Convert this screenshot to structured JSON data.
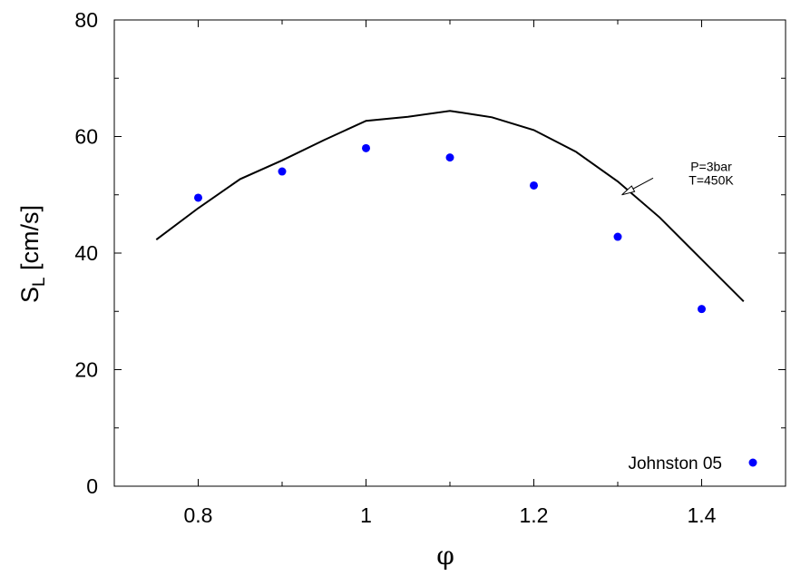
{
  "chart_data": {
    "type": "scatter",
    "title": "",
    "xlabel": "φ",
    "ylabel_main": "S",
    "ylabel_sub": "L",
    "ylabel_unit": " [cm/s]",
    "xlim": [
      0.7,
      1.5
    ],
    "ylim": [
      0,
      80
    ],
    "x_ticks": [
      0.8,
      1,
      1.2,
      1.4
    ],
    "x_tick_labels": [
      "0.8",
      "1",
      "1.2",
      "1.4"
    ],
    "y_ticks": [
      0,
      20,
      40,
      60,
      80
    ],
    "y_tick_labels": [
      "0",
      "20",
      "40",
      "60",
      "80"
    ],
    "grid": false,
    "legend_position": "bottom-right",
    "series": [
      {
        "name": "Johnston 05",
        "kind": "points",
        "color": "#0000ff",
        "x": [
          0.8,
          0.9,
          1.0,
          1.1,
          1.2,
          1.3,
          1.4
        ],
        "y": [
          49.5,
          54.0,
          58.0,
          56.4,
          51.6,
          42.8,
          30.4
        ]
      },
      {
        "kind": "line",
        "color": "#000000",
        "x": [
          0.75,
          0.8,
          0.85,
          0.9,
          0.95,
          1.0,
          1.05,
          1.1,
          1.15,
          1.2,
          1.25,
          1.3,
          1.35,
          1.4,
          1.45
        ],
        "y": [
          42.3,
          47.7,
          52.7,
          55.9,
          59.4,
          62.7,
          63.4,
          64.4,
          63.3,
          61.1,
          57.4,
          52.3,
          46.1,
          38.9,
          31.7
        ]
      }
    ],
    "annotations": [
      {
        "lines": [
          "P=3bar",
          "T=450K"
        ],
        "x": 1.34,
        "y": 53.5,
        "arrow_to_x": 1.305,
        "arrow_to_y": 50.0
      }
    ]
  }
}
